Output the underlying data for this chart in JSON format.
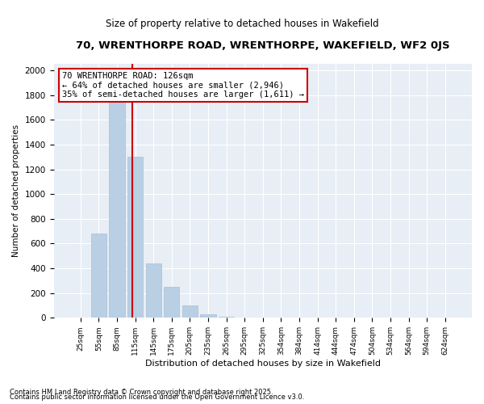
{
  "title": "70, WRENTHORPE ROAD, WRENTHORPE, WAKEFIELD, WF2 0JS",
  "subtitle": "Size of property relative to detached houses in Wakefield",
  "xlabel": "Distribution of detached houses by size in Wakefield",
  "ylabel": "Number of detached properties",
  "categories": [
    "25sqm",
    "55sqm",
    "85sqm",
    "115sqm",
    "145sqm",
    "175sqm",
    "205sqm",
    "235sqm",
    "265sqm",
    "295sqm",
    "325sqm",
    "354sqm",
    "384sqm",
    "414sqm",
    "444sqm",
    "474sqm",
    "504sqm",
    "534sqm",
    "564sqm",
    "594sqm",
    "624sqm"
  ],
  "values": [
    0,
    680,
    1800,
    1300,
    440,
    250,
    100,
    30,
    10,
    5,
    3,
    2,
    1,
    1,
    0,
    0,
    0,
    0,
    0,
    0,
    0
  ],
  "bar_color": "#b8cfe4",
  "bar_edgecolor": "#aabfd6",
  "vline_color": "#cc0000",
  "vline_pos": 2.85,
  "annotation_text": "70 WRENTHORPE ROAD: 126sqm\n← 64% of detached houses are smaller (2,946)\n35% of semi-detached houses are larger (1,611) →",
  "annotation_box_facecolor": "#ffffff",
  "annotation_box_edgecolor": "#cc0000",
  "ylim": [
    0,
    2050
  ],
  "yticks": [
    0,
    200,
    400,
    600,
    800,
    1000,
    1200,
    1400,
    1600,
    1800,
    2000
  ],
  "footer1": "Contains HM Land Registry data © Crown copyright and database right 2025.",
  "footer2": "Contains public sector information licensed under the Open Government Licence v3.0.",
  "bg_color": "#e8eef5",
  "title_fontsize": 9.5,
  "subtitle_fontsize": 8.5,
  "annotation_fontsize": 7.5
}
